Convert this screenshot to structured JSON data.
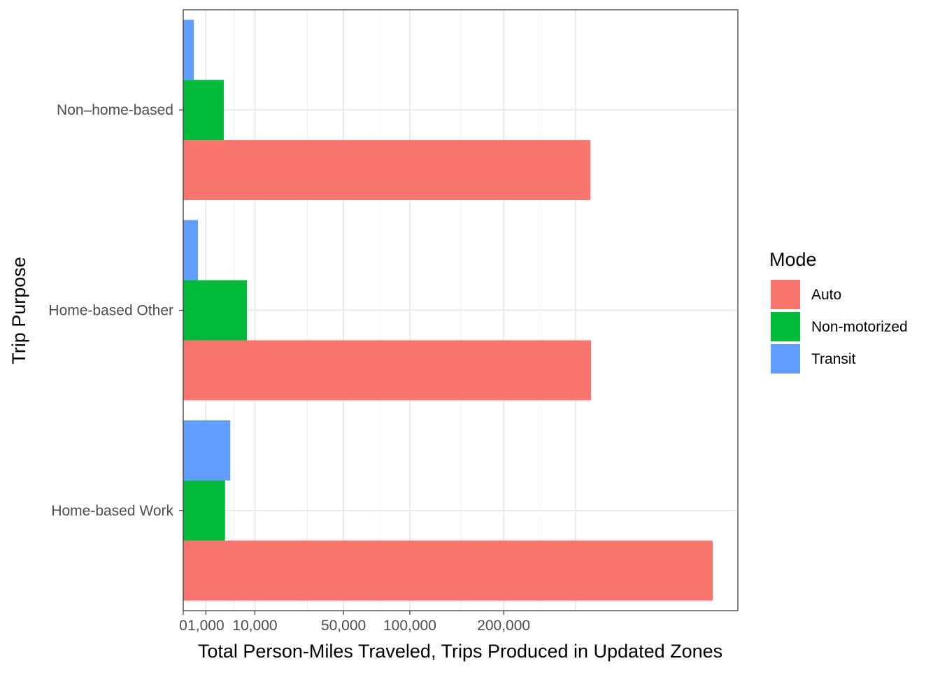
{
  "chart_data": {
    "type": "bar",
    "orientation": "horizontal",
    "x_scale": "sqrt",
    "categories": [
      "Home-based Work",
      "Home-based Other",
      "Non–home-based"
    ],
    "series": [
      {
        "name": "Auto",
        "color": "#F8766D",
        "values": [
          546000,
          324000,
          323000
        ]
      },
      {
        "name": "Non-motorized",
        "color": "#00BA38",
        "values": [
          3400,
          7900,
          3200
        ]
      },
      {
        "name": "Transit",
        "color": "#619CFF",
        "values": [
          4300,
          420,
          220
        ]
      }
    ],
    "xlabel": "Total Person-Miles Traveled, Trips Produced in Updated Zones",
    "ylabel": "Trip Purpose",
    "xlim": [
      0,
      630000
    ],
    "x_ticks": [
      0,
      1000,
      10000,
      50000,
      100000,
      200000
    ],
    "x_tick_labels": [
      "0",
      "1,000",
      "10,000",
      "50,000",
      "100,000",
      "200,000"
    ],
    "grid": true,
    "legend": {
      "title": "Mode",
      "position": "right"
    }
  }
}
